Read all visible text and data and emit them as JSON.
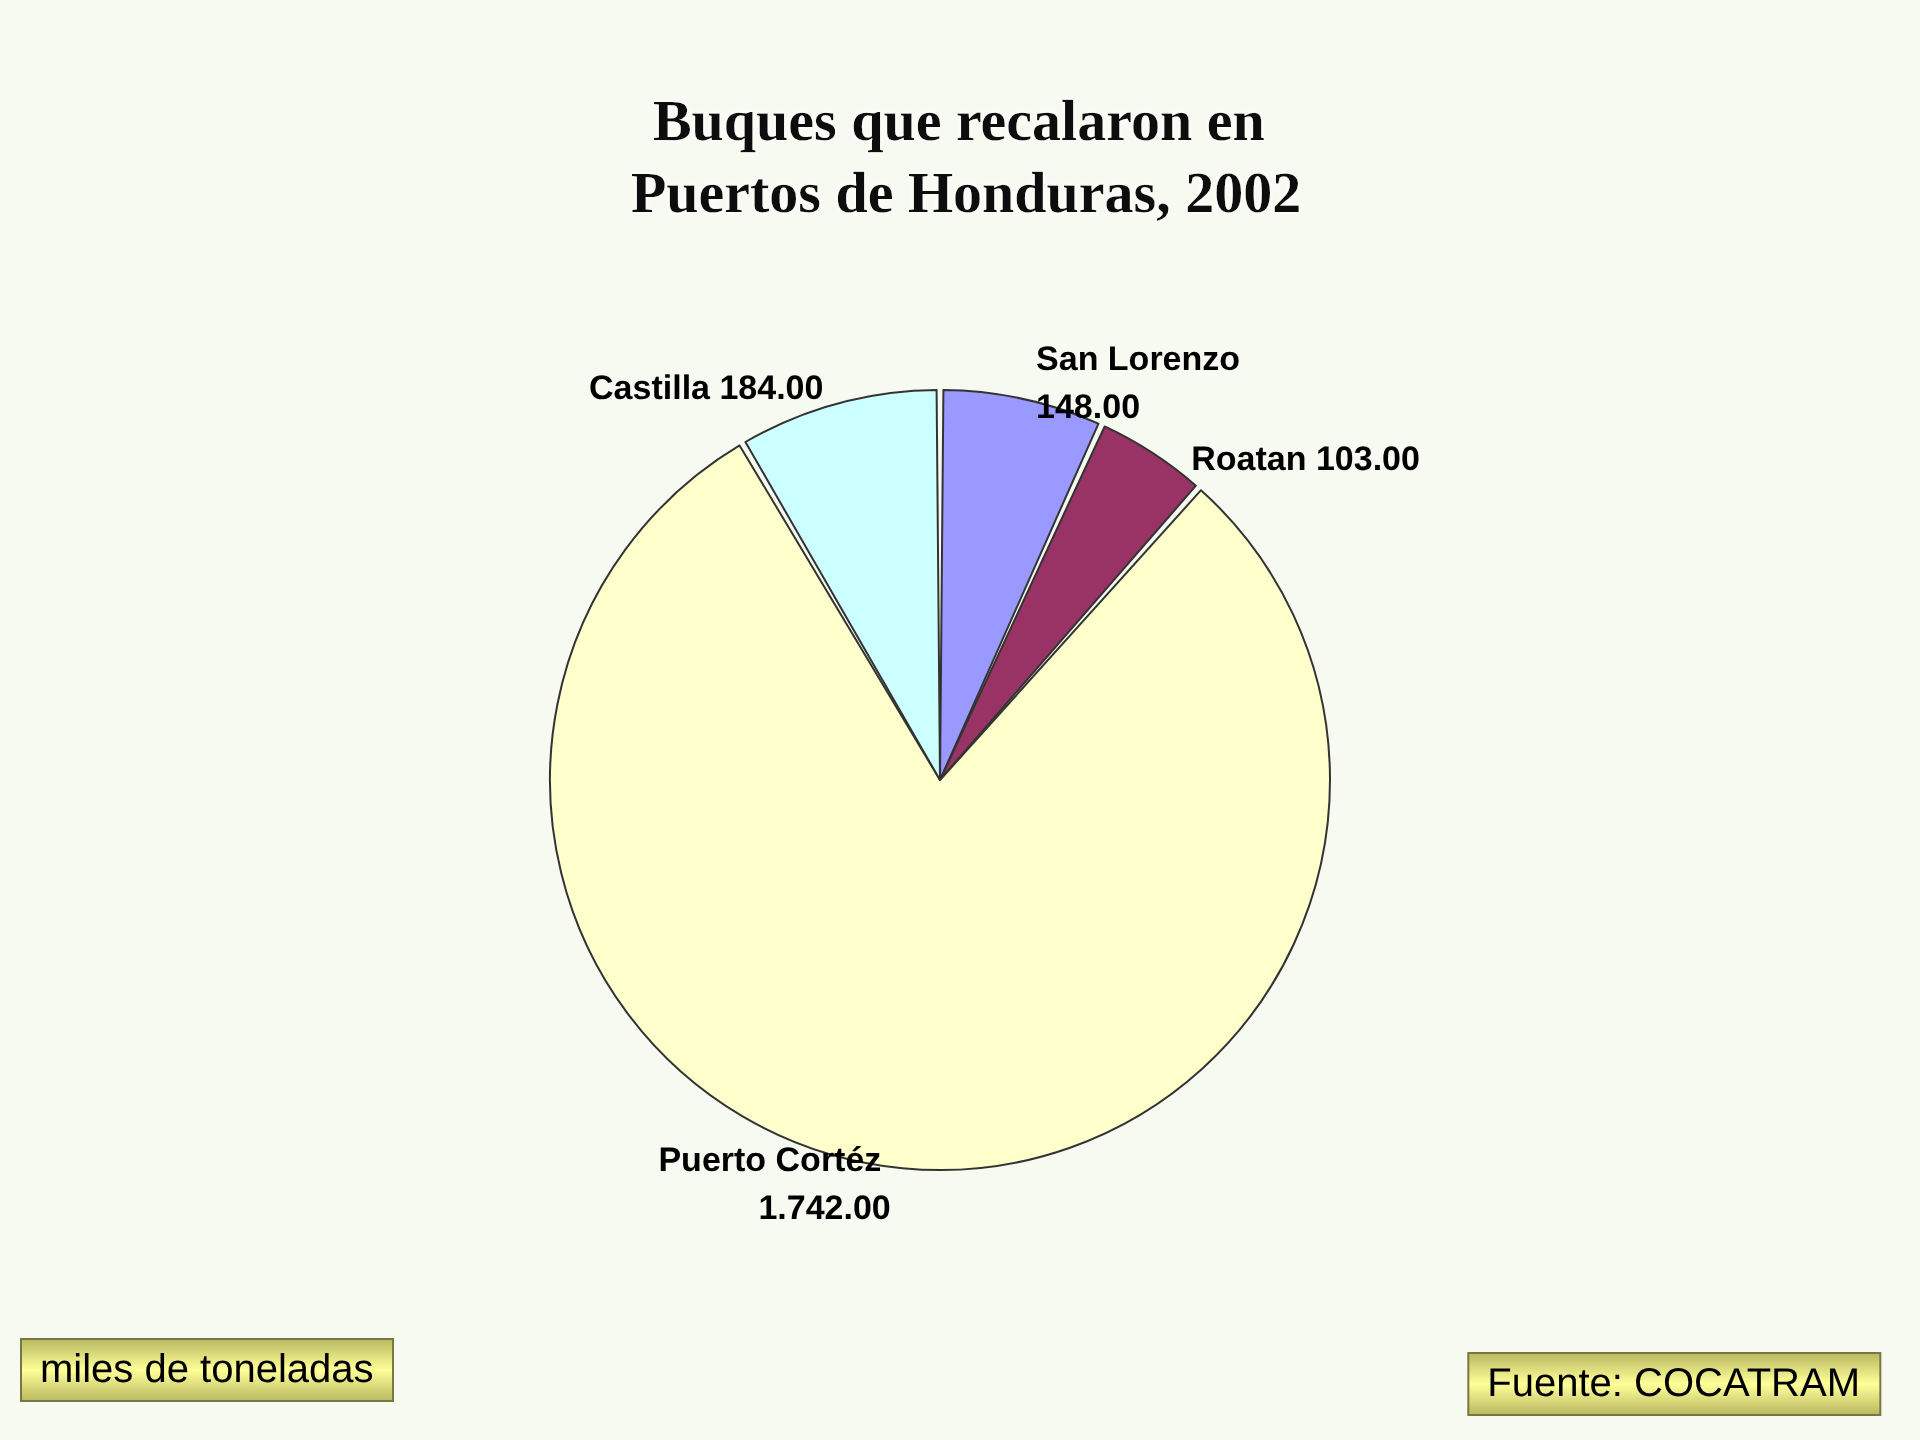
{
  "chart_data": {
    "type": "pie",
    "title": "Buques que recalaron en Puertos de Honduras, 2002",
    "categories": [
      "San Lorenzo",
      "Roatan",
      "Puerto Cortéz",
      "Castilla"
    ],
    "values": [
      148,
      103,
      1742,
      184
    ],
    "colors": [
      "#9999ff",
      "#993366",
      "#ffffcc",
      "#ccffff"
    ],
    "value_labels": [
      "148.00",
      "103.00",
      "1.742.00",
      "184.00"
    ],
    "annotations": [
      "miles de toneladas",
      "Fuente: COCATRAM"
    ]
  }
}
